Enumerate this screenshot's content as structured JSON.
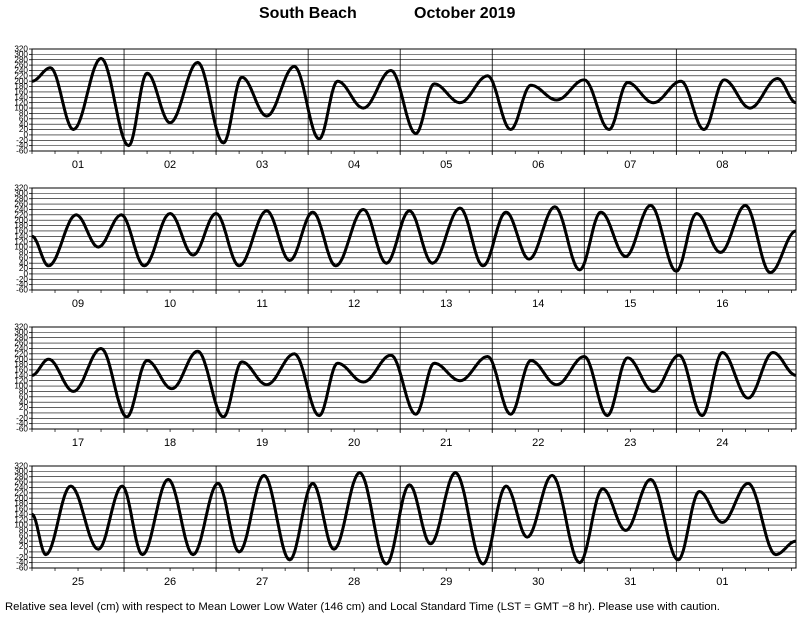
{
  "header": {
    "location": "South Beach",
    "month_year": "October   2019"
  },
  "footer": {
    "note": "Relative sea level (cm) with respect to Mean Lower Low Water (146 cm) and Local Standard Time (LST = GMT −8 hr). Please use with caution."
  },
  "chart_data": {
    "type": "line",
    "title": "South Beach October 2019",
    "ylabel": "",
    "xlabel": "",
    "ylim": [
      -60,
      320
    ],
    "yticks": [
      320,
      300,
      280,
      260,
      240,
      220,
      200,
      180,
      160,
      140,
      120,
      100,
      80,
      60,
      40,
      20,
      0,
      -20,
      -40,
      -60
    ],
    "grid": true,
    "panels": [
      {
        "days": [
          "01",
          "02",
          "03",
          "04",
          "05",
          "06",
          "07",
          "08"
        ],
        "extremes": [
          {
            "t": 0.0,
            "v": 200
          },
          {
            "t": 0.2,
            "v": 250
          },
          {
            "t": 0.45,
            "v": 20
          },
          {
            "t": 0.75,
            "v": 285
          },
          {
            "t": 1.05,
            "v": -40
          },
          {
            "t": 1.25,
            "v": 230
          },
          {
            "t": 1.5,
            "v": 45
          },
          {
            "t": 1.8,
            "v": 270
          },
          {
            "t": 2.08,
            "v": -30
          },
          {
            "t": 2.28,
            "v": 215
          },
          {
            "t": 2.55,
            "v": 70
          },
          {
            "t": 2.85,
            "v": 255
          },
          {
            "t": 3.12,
            "v": -15
          },
          {
            "t": 3.32,
            "v": 200
          },
          {
            "t": 3.6,
            "v": 100
          },
          {
            "t": 3.9,
            "v": 240
          },
          {
            "t": 4.17,
            "v": 5
          },
          {
            "t": 4.37,
            "v": 190
          },
          {
            "t": 4.65,
            "v": 120
          },
          {
            "t": 4.95,
            "v": 220
          },
          {
            "t": 5.2,
            "v": 20
          },
          {
            "t": 5.42,
            "v": 185
          },
          {
            "t": 5.7,
            "v": 130
          },
          {
            "t": 6.0,
            "v": 205
          },
          {
            "t": 6.27,
            "v": 20
          },
          {
            "t": 6.47,
            "v": 195
          },
          {
            "t": 6.75,
            "v": 120
          },
          {
            "t": 7.05,
            "v": 200
          },
          {
            "t": 7.3,
            "v": 20
          },
          {
            "t": 7.52,
            "v": 205
          },
          {
            "t": 7.8,
            "v": 100
          },
          {
            "t": 8.1,
            "v": 210
          },
          {
            "t": 8.3,
            "v": 120
          }
        ]
      },
      {
        "days": [
          "09",
          "10",
          "11",
          "12",
          "13",
          "14",
          "15",
          "16"
        ],
        "extremes": [
          {
            "t": 0.0,
            "v": 140
          },
          {
            "t": 0.18,
            "v": 30
          },
          {
            "t": 0.48,
            "v": 220
          },
          {
            "t": 0.72,
            "v": 100
          },
          {
            "t": 0.97,
            "v": 220
          },
          {
            "t": 1.22,
            "v": 30
          },
          {
            "t": 1.5,
            "v": 225
          },
          {
            "t": 1.75,
            "v": 70
          },
          {
            "t": 2.0,
            "v": 225
          },
          {
            "t": 2.25,
            "v": 30
          },
          {
            "t": 2.55,
            "v": 235
          },
          {
            "t": 2.8,
            "v": 50
          },
          {
            "t": 3.05,
            "v": 230
          },
          {
            "t": 3.3,
            "v": 30
          },
          {
            "t": 3.6,
            "v": 240
          },
          {
            "t": 3.85,
            "v": 40
          },
          {
            "t": 4.1,
            "v": 235
          },
          {
            "t": 4.35,
            "v": 40
          },
          {
            "t": 4.65,
            "v": 245
          },
          {
            "t": 4.9,
            "v": 30
          },
          {
            "t": 5.15,
            "v": 230
          },
          {
            "t": 5.4,
            "v": 55
          },
          {
            "t": 5.68,
            "v": 250
          },
          {
            "t": 5.95,
            "v": 15
          },
          {
            "t": 6.18,
            "v": 230
          },
          {
            "t": 6.45,
            "v": 65
          },
          {
            "t": 6.72,
            "v": 255
          },
          {
            "t": 7.0,
            "v": 10
          },
          {
            "t": 7.22,
            "v": 225
          },
          {
            "t": 7.48,
            "v": 80
          },
          {
            "t": 7.75,
            "v": 255
          },
          {
            "t": 8.02,
            "v": 5
          },
          {
            "t": 8.3,
            "v": 160
          }
        ]
      },
      {
        "days": [
          "17",
          "18",
          "19",
          "20",
          "21",
          "22",
          "23",
          "24"
        ],
        "extremes": [
          {
            "t": 0.0,
            "v": 140
          },
          {
            "t": 0.18,
            "v": 200
          },
          {
            "t": 0.45,
            "v": 80
          },
          {
            "t": 0.75,
            "v": 240
          },
          {
            "t": 1.03,
            "v": -15
          },
          {
            "t": 1.25,
            "v": 195
          },
          {
            "t": 1.52,
            "v": 90
          },
          {
            "t": 1.8,
            "v": 230
          },
          {
            "t": 2.08,
            "v": -15
          },
          {
            "t": 2.28,
            "v": 190
          },
          {
            "t": 2.55,
            "v": 105
          },
          {
            "t": 2.85,
            "v": 220
          },
          {
            "t": 3.12,
            "v": -10
          },
          {
            "t": 3.32,
            "v": 185
          },
          {
            "t": 3.6,
            "v": 115
          },
          {
            "t": 3.9,
            "v": 215
          },
          {
            "t": 4.17,
            "v": -5
          },
          {
            "t": 4.37,
            "v": 185
          },
          {
            "t": 4.65,
            "v": 120
          },
          {
            "t": 4.95,
            "v": 210
          },
          {
            "t": 5.2,
            "v": -5
          },
          {
            "t": 5.42,
            "v": 195
          },
          {
            "t": 5.7,
            "v": 105
          },
          {
            "t": 6.0,
            "v": 210
          },
          {
            "t": 6.25,
            "v": -10
          },
          {
            "t": 6.47,
            "v": 205
          },
          {
            "t": 6.75,
            "v": 80
          },
          {
            "t": 7.03,
            "v": 215
          },
          {
            "t": 7.28,
            "v": -10
          },
          {
            "t": 7.5,
            "v": 225
          },
          {
            "t": 7.78,
            "v": 55
          },
          {
            "t": 8.05,
            "v": 225
          },
          {
            "t": 8.3,
            "v": 140
          }
        ]
      },
      {
        "days": [
          "25",
          "26",
          "27",
          "28",
          "29",
          "30",
          "31",
          "01"
        ],
        "extremes": [
          {
            "t": 0.0,
            "v": 140
          },
          {
            "t": 0.15,
            "v": -10
          },
          {
            "t": 0.42,
            "v": 245
          },
          {
            "t": 0.72,
            "v": 10
          },
          {
            "t": 0.98,
            "v": 245
          },
          {
            "t": 1.2,
            "v": -10
          },
          {
            "t": 1.48,
            "v": 270
          },
          {
            "t": 1.75,
            "v": -10
          },
          {
            "t": 2.02,
            "v": 255
          },
          {
            "t": 2.25,
            "v": 0
          },
          {
            "t": 2.52,
            "v": 285
          },
          {
            "t": 2.8,
            "v": -30
          },
          {
            "t": 3.05,
            "v": 255
          },
          {
            "t": 3.28,
            "v": 10
          },
          {
            "t": 3.56,
            "v": 295
          },
          {
            "t": 3.85,
            "v": -45
          },
          {
            "t": 4.1,
            "v": 250
          },
          {
            "t": 4.33,
            "v": 30
          },
          {
            "t": 4.6,
            "v": 295
          },
          {
            "t": 4.9,
            "v": -45
          },
          {
            "t": 5.15,
            "v": 245
          },
          {
            "t": 5.38,
            "v": 55
          },
          {
            "t": 5.65,
            "v": 285
          },
          {
            "t": 5.95,
            "v": -40
          },
          {
            "t": 6.2,
            "v": 235
          },
          {
            "t": 6.45,
            "v": 80
          },
          {
            "t": 6.72,
            "v": 270
          },
          {
            "t": 7.02,
            "v": -30
          },
          {
            "t": 7.25,
            "v": 225
          },
          {
            "t": 7.5,
            "v": 110
          },
          {
            "t": 7.78,
            "v": 255
          },
          {
            "t": 8.08,
            "v": -10
          },
          {
            "t": 8.3,
            "v": 40
          }
        ]
      }
    ]
  }
}
